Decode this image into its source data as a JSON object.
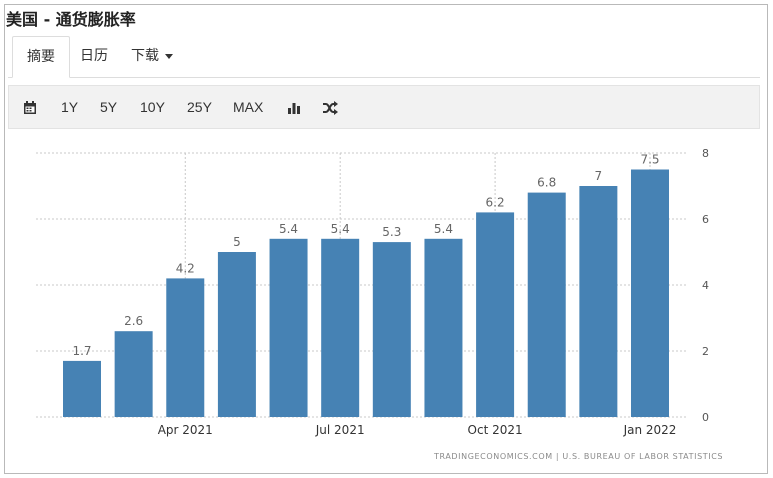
{
  "page": {
    "title": "美国 - 通货膨胀率"
  },
  "tabs": [
    {
      "label": "摘要"
    },
    {
      "label": "日历"
    },
    {
      "label": "下载"
    }
  ],
  "toolbar": {
    "icons": [
      "calendar-icon",
      "bar-chart-icon",
      "shuffle-icon"
    ],
    "ranges": [
      "1Y",
      "5Y",
      "10Y",
      "25Y",
      "MAX"
    ]
  },
  "colors": {
    "bar": "#4682b4",
    "grid": "#c8c8c8",
    "text": "#555555"
  },
  "chart_data": {
    "type": "bar",
    "title": "",
    "xlabel": "",
    "ylabel": "",
    "categories": [
      "2021-02",
      "2021-03",
      "2021-04",
      "2021-05",
      "2021-06",
      "2021-07",
      "2021-08",
      "2021-09",
      "2021-10",
      "2021-11",
      "2021-12",
      "2022-01"
    ],
    "values": [
      1.7,
      2.6,
      4.2,
      5,
      5.4,
      5.4,
      5.3,
      5.4,
      6.2,
      6.8,
      7,
      7.5
    ],
    "x_tick_labels": [
      {
        "category": "2021-04",
        "label": "Apr 2021"
      },
      {
        "category": "2021-07",
        "label": "Jul 2021"
      },
      {
        "category": "2021-10",
        "label": "Oct 2021"
      },
      {
        "category": "2022-01",
        "label": "Jan 2022"
      }
    ],
    "ylim": [
      0,
      8
    ],
    "yticks": [
      0,
      2,
      4,
      6,
      8
    ],
    "y_axis_side": "right",
    "grid": true,
    "data_labels": true
  },
  "source": "TRADINGECONOMICS.COM  |  U.S. BUREAU OF LABOR STATISTICS"
}
